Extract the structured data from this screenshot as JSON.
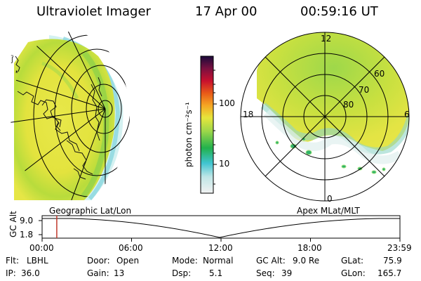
{
  "header": {
    "title": "Ultraviolet Imager",
    "date": "17 Apr 00",
    "time": "00:59:16 UT"
  },
  "colorbar": {
    "label": "photon cm⁻²s⁻¹",
    "ticks": [
      "100",
      "10"
    ]
  },
  "polar_plot": {
    "mlt_labels": {
      "top": "12",
      "left": "18",
      "right": "6",
      "bottom": "0"
    },
    "mlat_labels": [
      "60",
      "70",
      "80"
    ]
  },
  "panels": {
    "left_caption": "Geographic Lat/Lon",
    "right_caption": "Apex MLat/MLT"
  },
  "altitude_plot": {
    "ylabel": "GC Alt",
    "yticks": [
      "9.0",
      "1.8"
    ],
    "xticks": [
      "00:00",
      "06:00",
      "12:00",
      "18:00",
      "23:59"
    ],
    "marker_time_fraction": 0.041
  },
  "info": {
    "row1": [
      {
        "label": "Flt:",
        "value": "LBHL"
      },
      {
        "label": "Door:",
        "value": "Open"
      },
      {
        "label": "Mode:",
        "value": "Normal"
      },
      {
        "label": "GC Alt:",
        "value": "9.0 Re"
      },
      {
        "label": "GLat:",
        "value": "75.9"
      }
    ],
    "row2": [
      {
        "label": "IP:",
        "value": "36.0"
      },
      {
        "label": "Gain:",
        "value": "13"
      },
      {
        "label": "Dsp:",
        "value": "5.1"
      },
      {
        "label": "Seq:",
        "value": "39"
      },
      {
        "label": "GLon:",
        "value": "165.7"
      }
    ]
  },
  "colors": {
    "marker": "#c0392b",
    "scale": [
      "#f2f2f2",
      "#bfe6e6",
      "#3fc4d0",
      "#22b14c",
      "#9bd64a",
      "#e6e63c",
      "#f5a623",
      "#e85a18",
      "#c8102e",
      "#7a1040",
      "#1a0a3a"
    ]
  }
}
